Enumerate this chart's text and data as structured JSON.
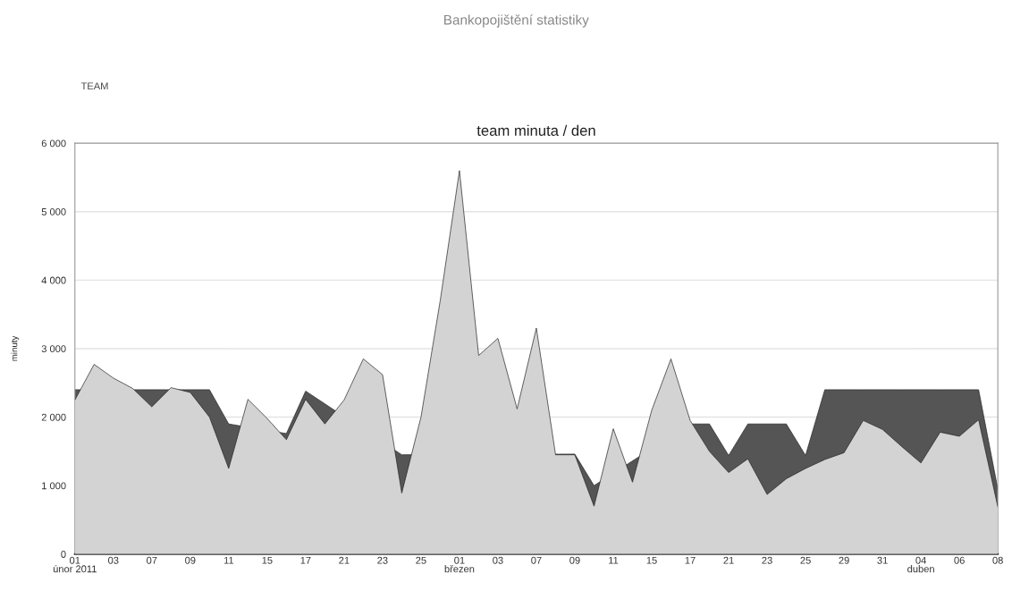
{
  "chart_data": {
    "type": "area",
    "title": "team minuta / den",
    "ylabel": "minuty",
    "annotations": [
      "Bankopojištění statistiky",
      "TEAM"
    ],
    "categories": [
      "01\núnor 2011",
      null,
      "03",
      null,
      "07",
      null,
      "09",
      null,
      "11",
      null,
      "15",
      null,
      "17",
      null,
      "21",
      null,
      "23",
      null,
      "25",
      null,
      "01\nbřezen",
      null,
      "03",
      null,
      "07",
      null,
      "09",
      null,
      "11",
      null,
      "15",
      null,
      "17",
      null,
      "21",
      null,
      "23",
      null,
      "25",
      null,
      "29",
      null,
      "31",
      null,
      "04\nduben",
      null,
      "06",
      null,
      "08"
    ],
    "series": [
      {
        "color": "#555555",
        "values": [
          2400,
          null,
          null,
          2400,
          2400,
          null,
          2400,
          2400,
          1900,
          null,
          null,
          1760,
          2380,
          null,
          null,
          null,
          null,
          1450,
          null,
          null,
          null,
          null,
          null,
          null,
          null,
          null,
          1460,
          1000,
          null,
          null,
          null,
          null,
          1900,
          1900,
          1440,
          1900,
          1900,
          1900,
          1440,
          2400,
          2400,
          2400,
          2400,
          2400,
          2400,
          2400,
          2400,
          2400,
          950
        ]
      },
      {
        "color": "#d3d3d3",
        "values": [
          2250,
          2770,
          2570,
          2420,
          2150,
          2430,
          2360,
          2000,
          1250,
          2260,
          1980,
          1670,
          2260,
          1900,
          2250,
          2850,
          2620,
          890,
          2000,
          3700,
          5600,
          2900,
          3150,
          2120,
          3300,
          1450,
          1450,
          700,
          1830,
          1050,
          2100,
          2850,
          1950,
          1500,
          1190,
          1390,
          870,
          1100,
          1250,
          1380,
          1480,
          1950,
          1820,
          1570,
          1330,
          1780,
          1720,
          1960,
          690
        ]
      }
    ],
    "ylim": [
      0,
      6000
    ],
    "yticks": [
      {
        "value": 0,
        "label": "0"
      },
      {
        "value": 1000,
        "label": "1 000"
      },
      {
        "value": 2000,
        "label": "2 000"
      },
      {
        "value": 3000,
        "label": "3 000"
      },
      {
        "value": 4000,
        "label": "4 000"
      },
      {
        "value": 5000,
        "label": "5 000"
      },
      {
        "value": 6000,
        "label": "6 000"
      }
    ],
    "grid": "y"
  }
}
